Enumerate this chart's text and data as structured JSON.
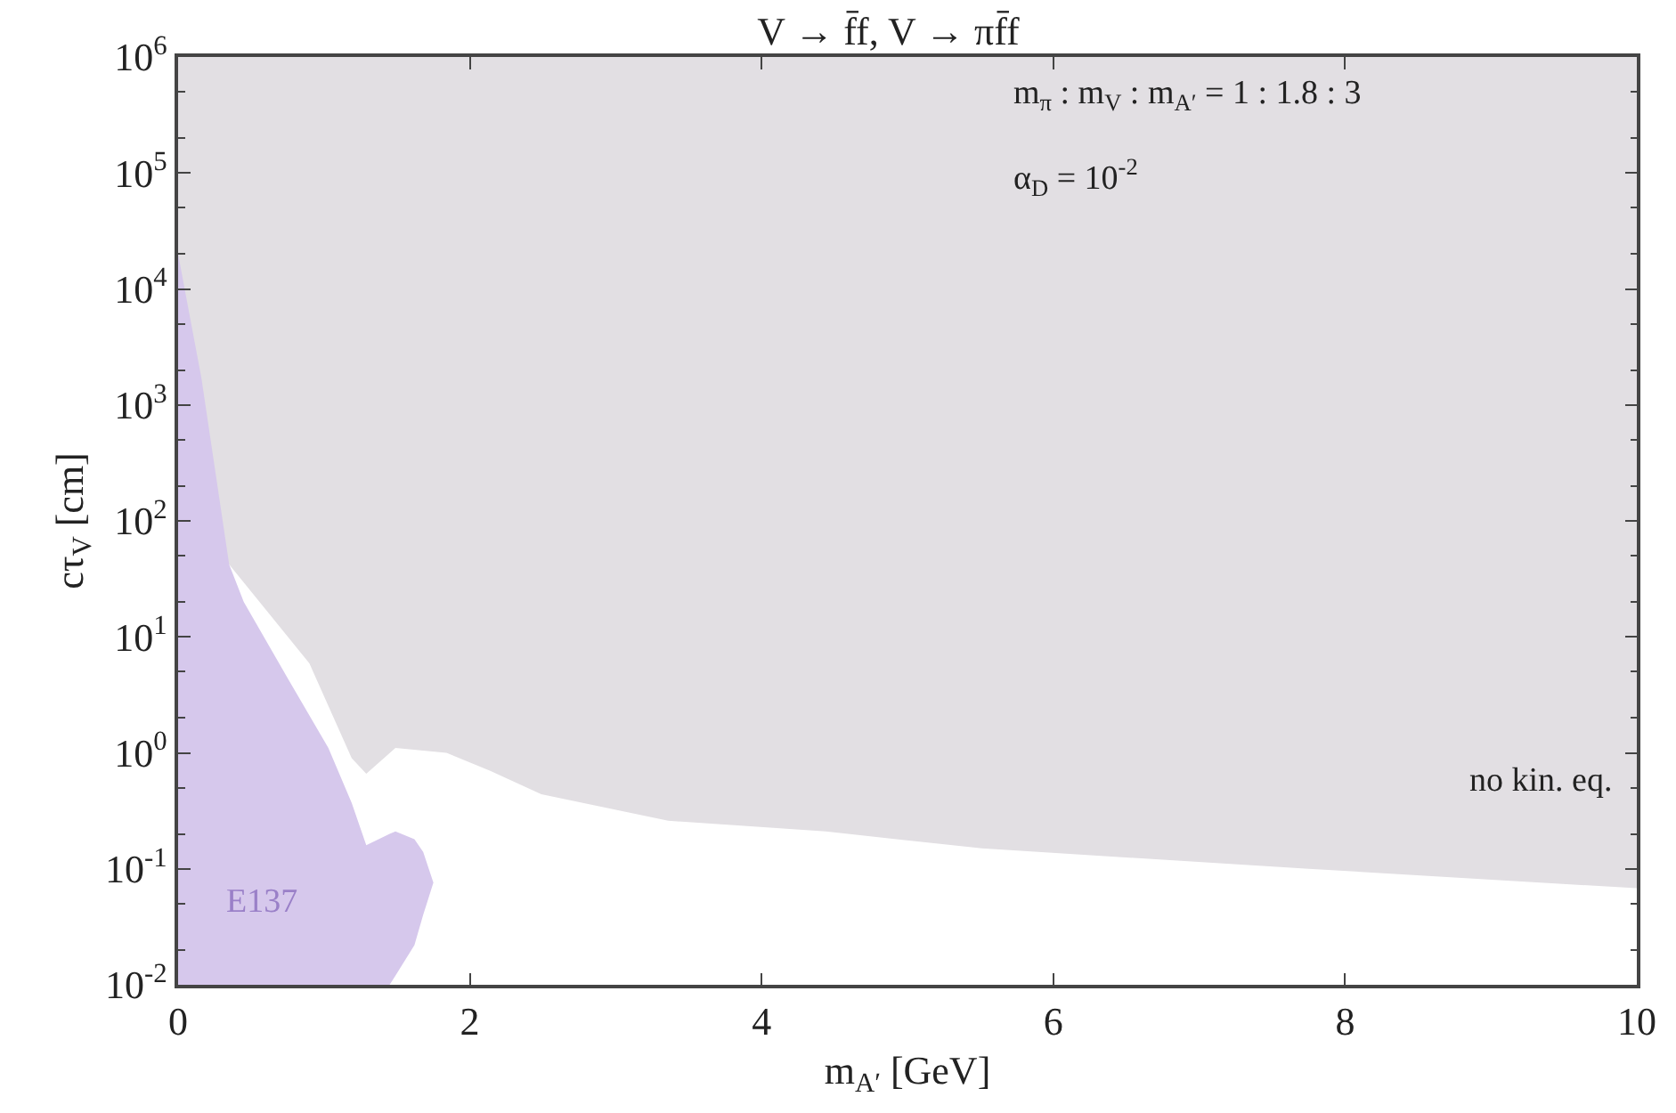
{
  "chart_data": {
    "type": "area",
    "title": "V → f̄f, V → πf̄f",
    "xlabel": "m$_{A′}$ [GeV]",
    "ylabel": "cτ$_{V}$ [cm]",
    "series": [
      {
        "color": "#e2dfe3",
        "x": [
          0,
          0.35,
          0.9,
          1.19,
          1.29,
          1.49,
          1.84,
          2.14,
          2.49,
          3.36,
          4.44,
          5.51,
          7.75,
          10,
          10,
          0
        ],
        "values": [
          100,
          42,
          5.9,
          0.9,
          0.66,
          1.1,
          1.0,
          0.7,
          0.44,
          0.26,
          0.21,
          0.15,
          0.1,
          0.068,
          1000000,
          1000000
        ]
      },
      {
        "color": "#d6c8ec",
        "x": [
          0,
          0.16,
          0.35,
          0.45,
          0.77,
          1.03,
          1.19,
          1.29,
          1.45,
          1.49,
          1.62,
          1.68,
          1.75,
          1.68,
          1.62,
          1.49,
          1.45,
          0
        ],
        "values": [
          20000,
          1700,
          42,
          20,
          4,
          1.1,
          0.37,
          0.16,
          0.2,
          0.21,
          0.18,
          0.14,
          0.076,
          0.04,
          0.022,
          0.012,
          0.01,
          0.01
        ]
      }
    ],
    "annotations": [
      "m$_{π}$ : m$_{V}$ : m$_{A′}$ = 1 : 1.8 : 3",
      "α$_{D}$ = 10$^{-2}$",
      "E137",
      "no kin. eq."
    ],
    "log": "y",
    "xlim": [
      0,
      10
    ],
    "ylim": [
      0.01,
      1000000
    ],
    "xticks": [
      0,
      2,
      4,
      6,
      8,
      10
    ],
    "yticks": [
      {
        "value": 0.01,
        "label": "10$^{-2}$"
      },
      {
        "value": 0.1,
        "label": "10$^{-1}$"
      },
      {
        "value": 1,
        "label": "10$^{0}$"
      },
      {
        "value": 10,
        "label": "10$^{1}$"
      },
      {
        "value": 100,
        "label": "10$^{2}$"
      },
      {
        "value": 1000,
        "label": "10$^{3}$"
      },
      {
        "value": 10000,
        "label": "10$^{4}$"
      },
      {
        "value": 100000,
        "label": "10$^{5}$"
      },
      {
        "value": 1000000,
        "label": "10$^{6}$"
      }
    ]
  }
}
